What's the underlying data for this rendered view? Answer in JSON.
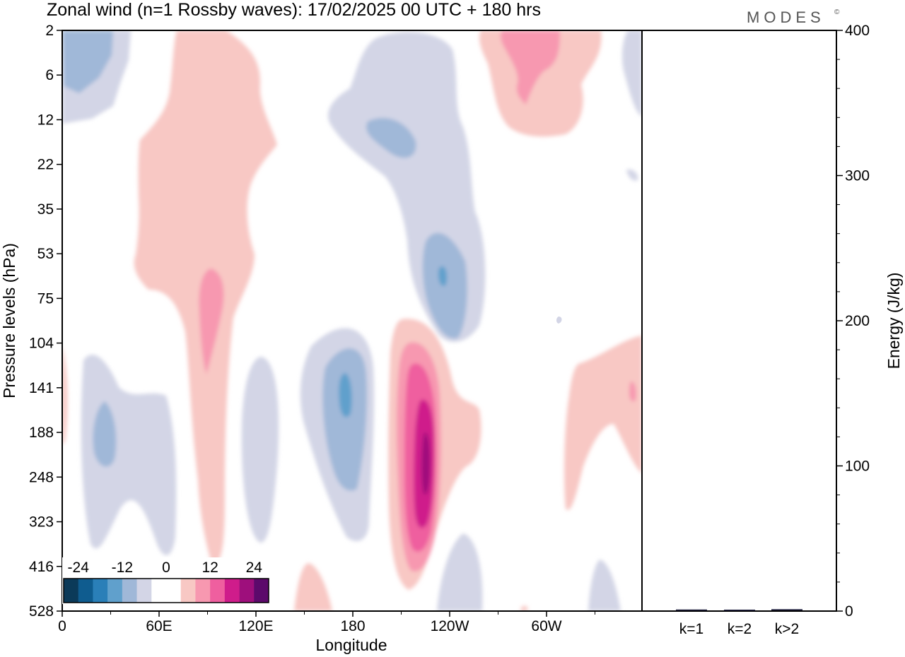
{
  "brand": "MODES",
  "brand_mark": "©",
  "chart_data": [
    {
      "type": "heatmap",
      "title": "Zonal wind (n=1 Rossby waves):  17/02/2025  00 UTC  + 180 hrs",
      "xlabel": "Longitude",
      "ylabel": "Pressure levels (hPa)",
      "x_ticks": [
        "0",
        "60E",
        "120E",
        "180",
        "120W",
        "60W"
      ],
      "y_ticks": [
        "2",
        "6",
        "12",
        "22",
        "35",
        "53",
        "75",
        "104",
        "141",
        "188",
        "248",
        "323",
        "416",
        "528"
      ],
      "colorbar": {
        "tick_labels": [
          "-24",
          "-12",
          "0",
          "12",
          "24"
        ],
        "colors": [
          "#0b3a59",
          "#0f5c8f",
          "#2a7fb8",
          "#60a0cc",
          "#a0b8d8",
          "#d3d5e6",
          "#ffffff",
          "#ffffff",
          "#f8c8c4",
          "#f798b0",
          "#ef5f9f",
          "#cf1c8b",
          "#9e0f7c",
          "#5c0a6b"
        ]
      },
      "features": [
        {
          "sign": "negative",
          "longitude": 10,
          "level_hPa": 6,
          "value": -9
        },
        {
          "sign": "positive",
          "longitude": 95,
          "level_hPa": 75,
          "value": 8
        },
        {
          "sign": "negative",
          "longitude": 25,
          "level_hPa": 188,
          "value": -9
        },
        {
          "sign": "negative",
          "longitude": 175,
          "level_hPa": 141,
          "value": -14
        },
        {
          "sign": "negative",
          "longitude": 210,
          "level_hPa": 12,
          "value": -8
        },
        {
          "sign": "negative",
          "longitude": 235,
          "level_hPa": 60,
          "value": -13
        },
        {
          "sign": "positive",
          "longitude": 228,
          "level_hPa": 230,
          "value": 22
        },
        {
          "sign": "positive",
          "longitude": 290,
          "level_hPa": 6,
          "value": 8
        },
        {
          "sign": "positive",
          "longitude": 353,
          "level_hPa": 141,
          "value": 5
        }
      ]
    },
    {
      "type": "bar",
      "categories": [
        "k=1",
        "k=2",
        "k>2"
      ],
      "values": [
        0.6,
        0.5,
        0.8
      ],
      "ylabel": "Energy (J/kg)",
      "y_ticks": [
        "0",
        "100",
        "200",
        "300",
        "400"
      ],
      "ylim": [
        0,
        400
      ]
    }
  ]
}
